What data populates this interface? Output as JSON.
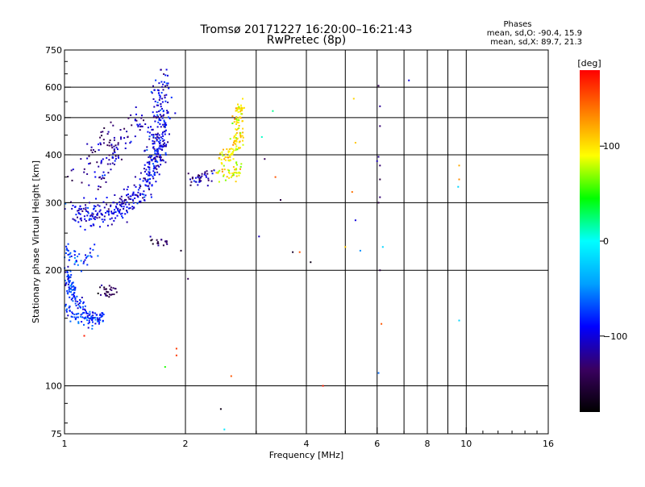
{
  "chart_data": {
    "type": "scatter",
    "title": "Tromsø 20171227 16:20:00–16:21:43",
    "subtitle": "RwPretec (8p)",
    "xlabel": "Frequency [MHz]",
    "ylabel": "Stationary phase Virtual Height [km]",
    "x_scale": "log",
    "y_scale": "log",
    "xlim": [
      1,
      16
    ],
    "ylim": [
      75,
      750
    ],
    "x_ticks": [
      1,
      2,
      4,
      6,
      8,
      10,
      16
    ],
    "x_minor_gridlines": [
      3,
      5,
      7,
      9
    ],
    "y_ticks": [
      75,
      100,
      200,
      300,
      400,
      500,
      600,
      750
    ],
    "y_minor_gridlines": [],
    "grid": true,
    "info": {
      "heading": "Phases",
      "line_o": "mean, sd,O: -90.4, 15.9",
      "line_x": "mean, sd,X:  89.7, 21.3"
    },
    "colorbar": {
      "label": "[deg]",
      "range": [
        -180,
        180
      ],
      "ticks": [
        -100,
        0,
        100
      ],
      "tick_labels": [
        "−100",
        "0",
        "100"
      ],
      "colors": [
        "#000000",
        "#3a0060",
        "#0000ff",
        "#00a0ff",
        "#00ffff",
        "#00ff00",
        "#ffff00",
        "#ff8000",
        "#ff0000"
      ]
    },
    "clusters": [
      {
        "name": "o-trace-1",
        "phase": -100,
        "points": [
          [
            1.02,
            290
          ],
          [
            1.1,
            285
          ],
          [
            1.2,
            283
          ],
          [
            1.3,
            288
          ],
          [
            1.4,
            300
          ],
          [
            1.5,
            315
          ],
          [
            1.6,
            340
          ],
          [
            1.65,
            370
          ],
          [
            1.7,
            420
          ],
          [
            1.72,
            500
          ],
          [
            1.74,
            580
          ],
          [
            1.75,
            640
          ]
        ],
        "spread": 0.06,
        "count": 330
      },
      {
        "name": "o-trace-1-dense",
        "phase": -100,
        "points": [
          [
            1.1,
            265
          ],
          [
            1.3,
            275
          ],
          [
            1.5,
            300
          ],
          [
            1.6,
            330
          ],
          [
            1.7,
            380
          ],
          [
            1.75,
            450
          ],
          [
            1.78,
            520
          ]
        ],
        "spread": 0.05,
        "count": 150
      },
      {
        "name": "o-trace-1-upper",
        "phase": -110,
        "points": [
          [
            1.2,
            340
          ],
          [
            1.3,
            390
          ],
          [
            1.4,
            440
          ],
          [
            1.5,
            480
          ],
          [
            1.55,
            520
          ]
        ],
        "spread": 0.06,
        "count": 90
      },
      {
        "name": "o-trace-1-left",
        "phase": -125,
        "points": [
          [
            1.05,
            330
          ],
          [
            1.12,
            380
          ],
          [
            1.2,
            420
          ],
          [
            1.28,
            470
          ]
        ],
        "spread": 0.05,
        "count": 35
      },
      {
        "name": "o-trace-2",
        "phase": -80,
        "points": [
          [
            1.0,
            200
          ],
          [
            1.03,
            185
          ],
          [
            1.06,
            170
          ],
          [
            1.1,
            160
          ],
          [
            1.15,
            152
          ],
          [
            1.2,
            150
          ],
          [
            1.25,
            152
          ]
        ],
        "spread": 0.035,
        "count": 150
      },
      {
        "name": "o-trace-2-low",
        "phase": -75,
        "points": [
          [
            1.0,
            165
          ],
          [
            1.05,
            152
          ],
          [
            1.1,
            148
          ],
          [
            1.18,
            147
          ]
        ],
        "spread": 0.03,
        "count": 45
      },
      {
        "name": "o-trace-2-upper",
        "phase": -75,
        "points": [
          [
            1.0,
            225
          ],
          [
            1.05,
            215
          ],
          [
            1.1,
            210
          ],
          [
            1.15,
            215
          ],
          [
            1.2,
            230
          ]
        ],
        "spread": 0.04,
        "count": 45
      },
      {
        "name": "o-trace-3",
        "phase": -140,
        "points": [
          [
            1.22,
            180
          ],
          [
            1.28,
            175
          ],
          [
            1.35,
            178
          ]
        ],
        "spread": 0.035,
        "count": 28
      },
      {
        "name": "x-trace",
        "phase": 100,
        "points": [
          [
            2.45,
            400
          ],
          [
            2.52,
            390
          ],
          [
            2.6,
            400
          ],
          [
            2.65,
            420
          ],
          [
            2.7,
            460
          ],
          [
            2.72,
            500
          ],
          [
            2.75,
            540
          ]
        ],
        "spread": 0.035,
        "count": 130
      },
      {
        "name": "x-trace-scatter",
        "phase": 90,
        "points": [
          [
            2.45,
            370
          ],
          [
            2.55,
            350
          ],
          [
            2.65,
            360
          ],
          [
            2.75,
            370
          ]
        ],
        "spread": 0.04,
        "count": 45
      },
      {
        "name": "blob-2.2",
        "phase": -120,
        "points": [
          [
            2.05,
            350
          ],
          [
            2.1,
            345
          ],
          [
            2.2,
            350
          ],
          [
            2.3,
            360
          ]
        ],
        "spread": 0.04,
        "count": 40
      },
      {
        "name": "blob-1.75",
        "phase": -130,
        "points": [
          [
            1.62,
            240
          ],
          [
            1.72,
            238
          ],
          [
            1.8,
            237
          ]
        ],
        "spread": 0.02,
        "count": 18
      }
    ],
    "isolated_points": [
      [
        6.05,
        605,
        -140
      ],
      [
        7.2,
        625,
        -100
      ],
      [
        5.25,
        560,
        105
      ],
      [
        6.1,
        535,
        -120
      ],
      [
        3.3,
        520,
        20
      ],
      [
        6.1,
        475,
        -130
      ],
      [
        3.1,
        445,
        10
      ],
      [
        5.3,
        430,
        110
      ],
      [
        6.05,
        395,
        -120
      ],
      [
        3.15,
        390,
        -140
      ],
      [
        6.0,
        385,
        -110
      ],
      [
        6.1,
        375,
        -130
      ],
      [
        9.6,
        375,
        120
      ],
      [
        9.6,
        345,
        130
      ],
      [
        3.35,
        350,
        150
      ],
      [
        6.1,
        345,
        -150
      ],
      [
        9.55,
        330,
        -20
      ],
      [
        5.2,
        320,
        140
      ],
      [
        6.1,
        310,
        -130
      ],
      [
        6.05,
        300,
        -150
      ],
      [
        3.45,
        305,
        -150
      ],
      [
        5.3,
        270,
        -100
      ],
      [
        6.2,
        230,
        -20
      ],
      [
        3.05,
        245,
        -110
      ],
      [
        5.0,
        230,
        110
      ],
      [
        5.45,
        225,
        -50
      ],
      [
        3.7,
        223,
        -160
      ],
      [
        3.85,
        223,
        150
      ],
      [
        4.1,
        210,
        -170
      ],
      [
        6.1,
        200,
        -150
      ],
      [
        1.95,
        225,
        -160
      ],
      [
        2.03,
        190,
        -140
      ],
      [
        6.15,
        145,
        150
      ],
      [
        9.6,
        148,
        -20
      ],
      [
        1.9,
        120,
        160
      ],
      [
        1.9,
        125,
        160
      ],
      [
        1.78,
        112,
        50
      ],
      [
        2.6,
        106,
        150
      ],
      [
        6.05,
        108,
        -60
      ],
      [
        4.4,
        100,
        170
      ],
      [
        2.45,
        87,
        -170
      ],
      [
        2.5,
        77,
        -10
      ],
      [
        1.12,
        135,
        170
      ]
    ]
  }
}
